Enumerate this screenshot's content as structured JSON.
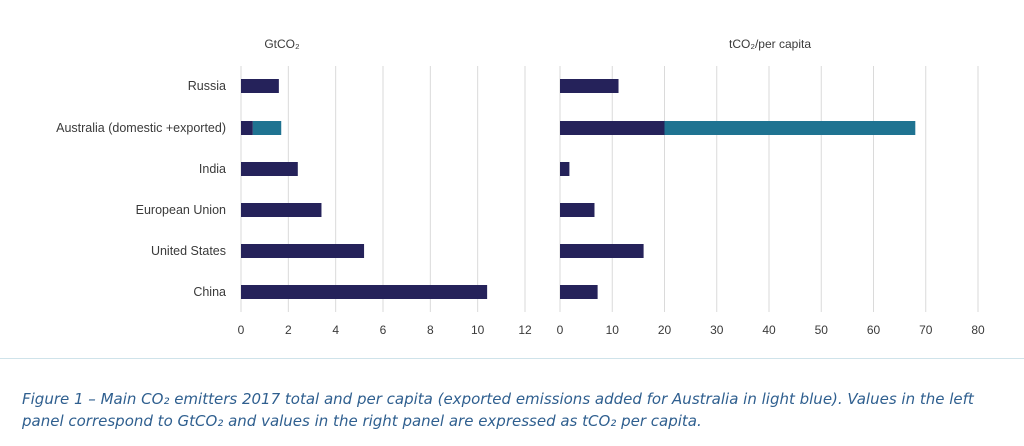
{
  "chart_data": [
    {
      "type": "bar",
      "orientation": "horizontal",
      "stacked": true,
      "title": "GtCO₂",
      "categories": [
        "Russia",
        "Australia (domestic +exported)",
        "India",
        "European Union",
        "United States",
        "China"
      ],
      "series": [
        {
          "values": [
            1.6,
            0.5,
            2.4,
            3.4,
            5.2,
            10.4
          ]
        },
        {
          "values": [
            0,
            1.2,
            0,
            0,
            0,
            0
          ]
        }
      ],
      "xlim": [
        0,
        12
      ],
      "xticks": [
        "0",
        "2",
        "4",
        "6",
        "8",
        "10",
        "12"
      ],
      "grid": true
    },
    {
      "type": "bar",
      "orientation": "horizontal",
      "stacked": true,
      "title": "tCO₂/per capita",
      "categories": [
        "Russia",
        "Australia (domestic +exported)",
        "India",
        "European Union",
        "United States",
        "China"
      ],
      "series": [
        {
          "values": [
            11.2,
            20,
            1.8,
            6.6,
            16,
            7.2
          ]
        },
        {
          "values": [
            0,
            48,
            0,
            0,
            0,
            0
          ]
        }
      ],
      "xlim": [
        0,
        80
      ],
      "xticks": [
        "0",
        "10",
        "20",
        "30",
        "40",
        "50",
        "60",
        "70",
        "80"
      ],
      "grid": true
    }
  ],
  "colors": {
    "domestic": "#25225a",
    "exported": "#1f7391",
    "grid": "#dadada",
    "text": "#3a3a3a",
    "caption": "#2f5f8f"
  },
  "caption": "Figure 1 – Main CO₂ emitters 2017 total and per capita (exported emissions added for Australia in light blue). Values in the left panel correspond to GtCO₂ and values in the right panel are expressed as tCO₂ per capita."
}
